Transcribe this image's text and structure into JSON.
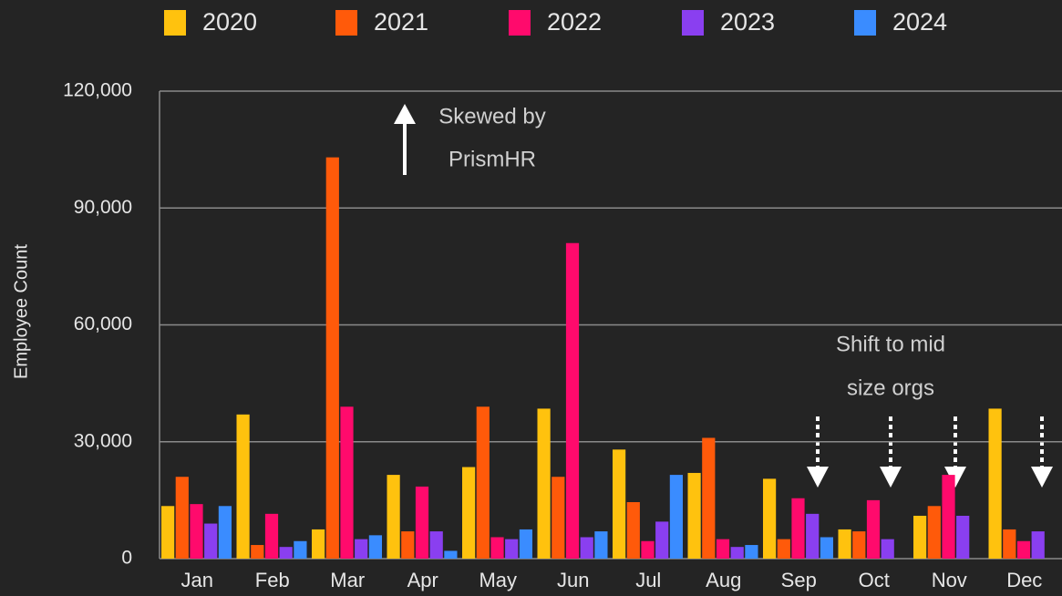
{
  "chart_data": {
    "type": "bar",
    "y_label": "Employee Count",
    "categories": [
      "Jan",
      "Feb",
      "Mar",
      "Apr",
      "May",
      "Jun",
      "Jul",
      "Aug",
      "Sep",
      "Oct",
      "Nov",
      "Dec"
    ],
    "series": [
      {
        "name": "2020",
        "color": "#ffc20e",
        "values": [
          13500,
          37000,
          7500,
          21500,
          23500,
          38500,
          28000,
          22000,
          20500,
          7500,
          11000,
          38500
        ]
      },
      {
        "name": "2021",
        "color": "#ff5a0a",
        "values": [
          21000,
          3500,
          103000,
          7000,
          39000,
          21000,
          14500,
          31000,
          5000,
          7000,
          13500,
          7500
        ]
      },
      {
        "name": "2022",
        "color": "#ff0a6c",
        "values": [
          14000,
          11500,
          39000,
          18500,
          5500,
          81000,
          4500,
          5000,
          15500,
          15000,
          21500,
          4500
        ]
      },
      {
        "name": "2023",
        "color": "#8a3ff0",
        "values": [
          9000,
          3000,
          5000,
          7000,
          5000,
          5500,
          9500,
          3000,
          11500,
          5000,
          11000,
          7000
        ]
      },
      {
        "name": "2024",
        "color": "#3a8cff",
        "values": [
          13500,
          4500,
          6000,
          2000,
          7500,
          7000,
          21500,
          3500,
          5500,
          null,
          null,
          null
        ]
      }
    ],
    "ylim": [
      0,
      120000
    ],
    "yticks": [
      0,
      {
        "value": 30000,
        "label": "30,000"
      },
      {
        "value": 60000,
        "label": "60,000"
      },
      {
        "value": 90000,
        "label": "90,000"
      },
      {
        "value": 120000,
        "label": "120,000"
      }
    ],
    "grid": true,
    "legend": "top",
    "annotations": [
      {
        "lines": [
          "Skewed by",
          "PrismHR"
        ]
      },
      {
        "lines": [
          "Shift to mid",
          "size orgs"
        ]
      }
    ]
  }
}
